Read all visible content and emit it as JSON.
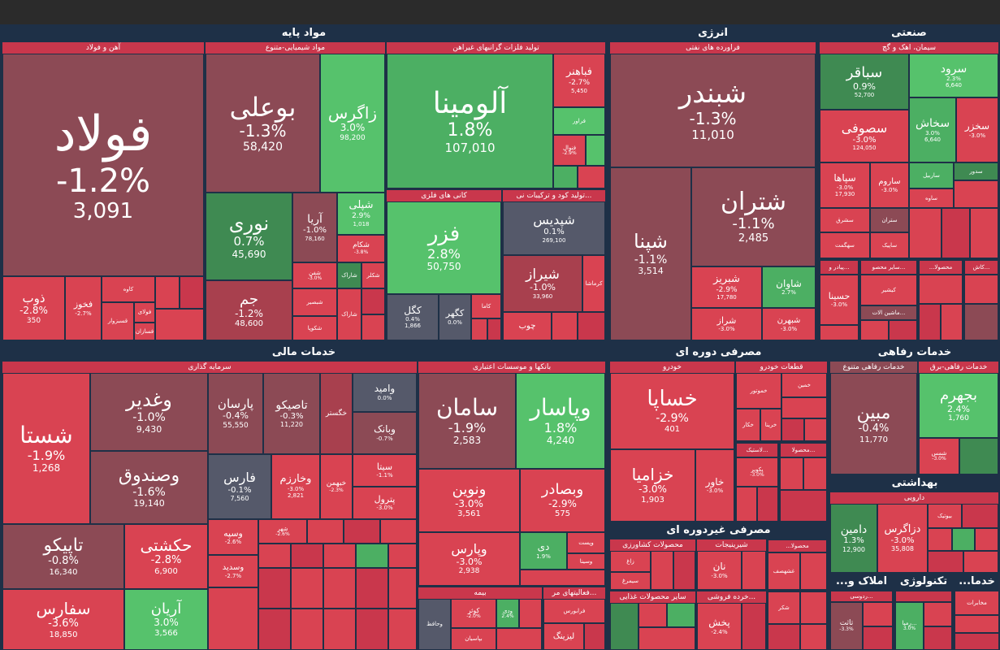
{
  "colors": {
    "bg": "#1e3047",
    "down_strong": "#d94352",
    "down": "#c9374c",
    "down_mild": "#8c4a55",
    "up": "#4caf63",
    "up_strong": "#56c26c",
    "neutral": "#55596a"
  },
  "sectors": {
    "mavad": "مواد پایه",
    "energy": "انرژی",
    "sanat": "صنعتی",
    "mali": "خدمات مالی",
    "dore": "مصرفی دوره ای",
    "refahi": "خدمات رفاهی",
    "behdasht": "بهداشتی",
    "gheirdore": "مصرفی غیردوره ای",
    "amlak": "املاک و...",
    "tech": "تکنولوژی",
    "khadamat": "خدما..."
  },
  "industries": {
    "ahan": "آهن و فولاد",
    "shimi": "مواد شیمیایی-متنوع",
    "felezat": "تولید فلزات گرانبهای غیراهن",
    "kani": "کانی های فلزی",
    "kood": "...تولید کود و ترکیبات نی",
    "naft": "فراورده های نفتی",
    "siman": "سیمان، اهک و گچ",
    "sarmaye": "سرمایه گذاری",
    "bank": "بانکها و موسسات اعتباری",
    "bime": "بیمه",
    "faaliat": "...فعالیتهای مر",
    "khodro": "خودرو",
    "ghataat": "قطعات خودرو",
    "refahi_m": "خدمات رفاهی متنوع",
    "refahi_b": "خدمات رفاهی-برق",
    "daroo": "دارویی",
    "mahsulat_k": "محصولات کشاورزی",
    "shirinijat": "شیرینیجات",
    "ghazaei": "سایر محصولات غذایی",
    "khorde": "...خرده فروشی",
    "ferdousi": "...ردوسی"
  },
  "tiles": {
    "foolad": {
      "name": "فولاد",
      "change": "-1.2%",
      "value": "3,091"
    },
    "zob": {
      "name": "ذوب",
      "change": "-2.8%",
      "value": "350"
    },
    "fakhooz": {
      "name": "فخوز",
      "change": "-2.7%"
    },
    "kave": {
      "name": "کاوه"
    },
    "ghasbzavar": {
      "name": "قسبزوار"
    },
    "fooladi": {
      "name": "فولای"
    },
    "fesazan": {
      "name": "فسازان"
    },
    "booali": {
      "name": "بوعلی",
      "change": "-1.3%",
      "value": "58,420"
    },
    "zagros": {
      "name": "زاگرس",
      "change": "3.0%",
      "value": "98,200"
    },
    "noori": {
      "name": "نوری",
      "change": "0.7%",
      "value": "45,690"
    },
    "aria": {
      "name": "آریا",
      "change": "-1.0%",
      "value": "78,160"
    },
    "shepli": {
      "name": "شپلی",
      "change": "2.9%",
      "value": "1,018"
    },
    "shekam": {
      "name": "شکام",
      "change": "-3.8%"
    },
    "jam": {
      "name": "جم",
      "change": "-1.2%",
      "value": "48,600"
    },
    "shafan": {
      "name": "شفن",
      "change": "-3.0%"
    },
    "shaaraak": {
      "name": "شاراک"
    },
    "shakalar": {
      "name": "شکلر"
    },
    "shebasir": {
      "name": "شبصیر"
    },
    "shaaraak2": {
      "name": "شاراک"
    },
    "shekopa": {
      "name": "شکوپا"
    },
    "aluminium": {
      "name": "آلومینا",
      "change": "1.8%",
      "value": "107,010"
    },
    "fabahonar": {
      "name": "فباهنر",
      "change": "-2.7%",
      "value": "5,450"
    },
    "feravar": {
      "name": "فراور"
    },
    "fenvol": {
      "name": "فنوال",
      "change": "-2.9%"
    },
    "fazr": {
      "name": "فزر",
      "change": "2.8%",
      "value": "50,750"
    },
    "kegol": {
      "name": "کگل",
      "change": "0.4%",
      "value": "1,866"
    },
    "kegohar": {
      "name": "کگهر",
      "change": "0.0%"
    },
    "kama": {
      "name": "کاما"
    },
    "shapdis": {
      "name": "شپدیس",
      "change": "0.1%",
      "value": "269,100"
    },
    "shiraz": {
      "name": "شیراز",
      "change": "-1.0%",
      "value": "33,960"
    },
    "kermasha": {
      "name": "کرماشا"
    },
    "choob": {
      "name": "چوب"
    },
    "shabandar": {
      "name": "شبندر",
      "change": "-1.3%",
      "value": "11,010"
    },
    "shetran": {
      "name": "شتران",
      "change": "-1.1%",
      "value": "2,485"
    },
    "shapna": {
      "name": "شپنا",
      "change": "-1.1%",
      "value": "3,514"
    },
    "shabriz": {
      "name": "شبریز",
      "change": "-2.9%",
      "value": "17,780"
    },
    "shavan": {
      "name": "شاوان",
      "change": "2.7%"
    },
    "shraz": {
      "name": "شراز",
      "change": "-3.0%"
    },
    "shabhran": {
      "name": "شبهرن",
      "change": "-3.0%"
    },
    "sabagher": {
      "name": "سباقر",
      "change": "0.9%",
      "value": "52,700"
    },
    "saroud": {
      "name": "سرود",
      "change": "2.3%",
      "value": "6,640"
    },
    "sesufi": {
      "name": "سصوفی",
      "change": "-3.0%",
      "value": "124,050"
    },
    "sekhash": {
      "name": "سخاش",
      "change": "3.0%",
      "value": "6,640"
    },
    "sekhazar": {
      "name": "سخزر",
      "change": "-3.0%"
    },
    "sepaha": {
      "name": "سپاها",
      "change": "-3.0%",
      "value": "17,930"
    },
    "saroom": {
      "name": "ساروم",
      "change": "-3.0%"
    },
    "sarbil": {
      "name": "ساربیل"
    },
    "sadore": {
      "name": "سدور"
    },
    "savah": {
      "name": "ساوه"
    },
    "sesharg": {
      "name": "سشرق"
    },
    "setran": {
      "name": "ستران"
    },
    "seghaet": {
      "name": "سهگمت"
    },
    "sapik": {
      "name": "ساپیک"
    },
    "bastan": {
      "name": "...پیادر و"
    },
    "saier_mahsul": {
      "name": "...سایر محصو"
    },
    "mahsula1": {
      "name": "محصولا..."
    },
    "kash": {
      "name": "...کاش"
    },
    "hasina": {
      "name": "حسینا",
      "change": "-3.0%"
    },
    "kashir": {
      "name": "کیشیر"
    },
    "mashin": {
      "name": "...ماشین الات"
    },
    "shasta": {
      "name": "شستا",
      "change": "-1.9%",
      "value": "1,268"
    },
    "vaghadir": {
      "name": "وغدیر",
      "change": "-1.0%",
      "value": "9,430"
    },
    "parsan": {
      "name": "پارسان",
      "change": "-0.4%",
      "value": "55,550"
    },
    "tasiko": {
      "name": "تاصیکو",
      "change": "-0.3%",
      "value": "11,220"
    },
    "khegostar": {
      "name": "خگستر"
    },
    "vamid": {
      "name": "وامید",
      "change": "0.0%"
    },
    "vabank": {
      "name": "وبانک",
      "change": "-0.7%"
    },
    "vasandoogh": {
      "name": "وصندوق",
      "change": "-1.6%",
      "value": "19,140"
    },
    "fars": {
      "name": "فارس",
      "change": "-0.1%",
      "value": "7,560"
    },
    "vakharazm": {
      "name": "وخارزم",
      "change": "-3.0%",
      "value": "2,821"
    },
    "khbahman": {
      "name": "خبهمن",
      "change": "-2.3%"
    },
    "sita": {
      "name": "سیتا",
      "change": "-1.1%"
    },
    "petrol": {
      "name": "پترول",
      "change": "-3.0%"
    },
    "tapiko": {
      "name": "تاپیکو",
      "change": "-0.8%",
      "value": "16,340"
    },
    "hekashti": {
      "name": "حکشتی",
      "change": "-2.8%",
      "value": "6,900"
    },
    "vasepeh": {
      "name": "وسپه",
      "change": "-2.6%"
    },
    "shahr": {
      "name": "شهر",
      "change": "-2.6%"
    },
    "vesdid": {
      "name": "وسدید",
      "change": "-2.7%"
    },
    "safaris": {
      "name": "سفارس",
      "change": "-3.6%",
      "value": "18,850"
    },
    "arian": {
      "name": "آریان",
      "change": "3.0%",
      "value": "3,566"
    },
    "saman": {
      "name": "سامان",
      "change": "-1.9%",
      "value": "2,583"
    },
    "vapasar": {
      "name": "وپاسار",
      "change": "1.8%",
      "value": "4,240"
    },
    "vanovin": {
      "name": "ونوین",
      "change": "-3.0%",
      "value": "3,561"
    },
    "vabsader": {
      "name": "وبصادر",
      "change": "-2.9%",
      "value": "575"
    },
    "vaparis": {
      "name": "وپارس",
      "change": "-3.0%",
      "value": "2,938"
    },
    "di": {
      "name": "دی",
      "change": "1.9%"
    },
    "vaposte": {
      "name": "وپست"
    },
    "vasina": {
      "name": "وسینا"
    },
    "kowsar": {
      "name": "کوثر",
      "change": "-2.0%"
    },
    "vadi": {
      "name": "ودی",
      "change": "2.4%"
    },
    "vahafez": {
      "name": "وحافظ"
    },
    "barsian": {
      "name": "بپاسیان"
    },
    "farabours": {
      "name": "فرابورس"
    },
    "lizing": {
      "name": "لیزینگ"
    },
    "khesapa": {
      "name": "خساپا",
      "change": "-2.9%",
      "value": "401"
    },
    "khazamia": {
      "name": "خزامیا",
      "change": "-3.0%",
      "value": "1,903"
    },
    "khavar": {
      "name": "خاور",
      "change": "-3.0%"
    },
    "khamin": {
      "name": "خمین"
    },
    "khemehvar": {
      "name": "خموتور"
    },
    "khkar": {
      "name": "خکار"
    },
    "khrina": {
      "name": "خرینا"
    },
    "lastik": {
      "name": "...لاستیک"
    },
    "pekavir": {
      "name": "پکویر",
      "change": "-3.0%"
    },
    "mahsulat2": {
      "name": "...محصولا"
    },
    "mobin": {
      "name": "مبین",
      "change": "-0.4%",
      "value": "11,770"
    },
    "bejahrom": {
      "name": "بجهرم",
      "change": "2.4%",
      "value": "1,760"
    },
    "shams": {
      "name": "شمس",
      "change": "-3.0%"
    },
    "damin": {
      "name": "دامین",
      "change": "1.3%",
      "value": "12,900"
    },
    "dazagros": {
      "name": "دزاگرس",
      "change": "-3.0%",
      "value": "35,808"
    },
    "bioteg": {
      "name": "بیوتیک"
    },
    "zagh": {
      "name": "زاغ"
    },
    "simorgh": {
      "name": "سیمرغ"
    },
    "nan": {
      "name": "نان",
      "change": "-3.0%"
    },
    "ghashhesaf": {
      "name": "غشهصف"
    },
    "shekar": {
      "name": "شکر"
    },
    "pakhsh": {
      "name": "پخش",
      "change": "-2.4%"
    },
    "taan": {
      "name": "تاثت",
      "change": "-3.3%"
    },
    "tarivana": {
      "name": "...رمیا",
      "change": "3.0%"
    },
    "mokhaberat": {
      "name": "مخابرات"
    }
  }
}
